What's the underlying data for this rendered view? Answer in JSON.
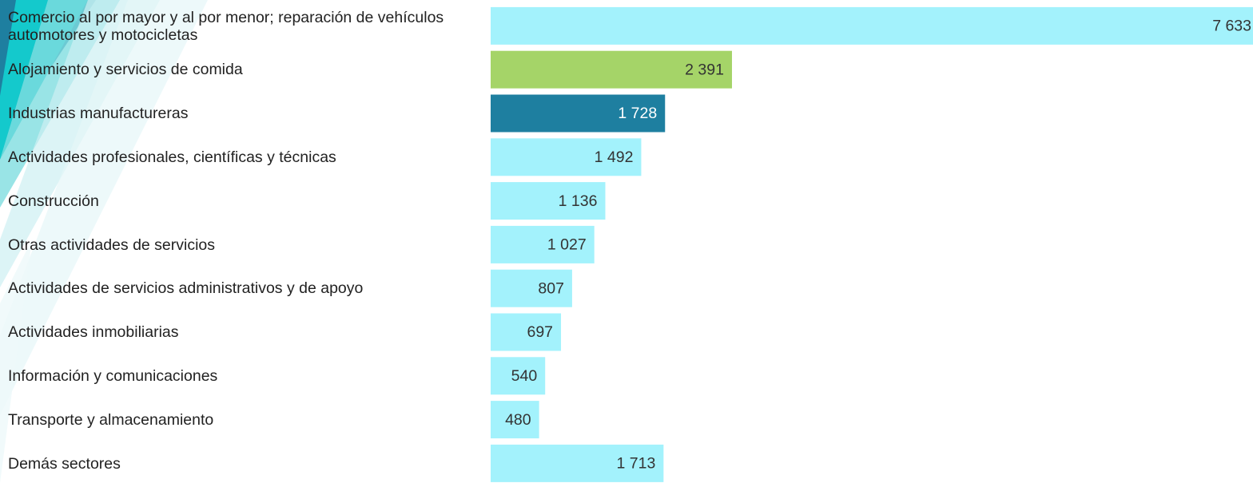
{
  "chart_data": {
    "type": "bar",
    "orientation": "horizontal",
    "categories": [
      "Comercio al por mayor y al por menor; reparación de vehículos automotores y motocicletas",
      "Alojamiento y servicios de comida",
      "Industrias manufactureras",
      "Actividades profesionales, científicas y técnicas",
      "Construcción",
      "Otras actividades de servicios",
      "Actividades de servicios administrativos y de apoyo",
      "Actividades inmobiliarias",
      "Información y comunicaciones",
      "Transporte y almacenamiento",
      "Demás sectores"
    ],
    "values": [
      7633,
      2391,
      1728,
      1492,
      1136,
      1027,
      807,
      697,
      540,
      480,
      1713
    ],
    "value_labels": [
      "7 633",
      "2 391",
      "1 728",
      "1 492",
      "1 136",
      "1 027",
      "807",
      "697",
      "540",
      "480",
      "1 713"
    ],
    "colors": [
      "#a3f2fc",
      "#a5d468",
      "#1e7fa0",
      "#a3f2fc",
      "#a3f2fc",
      "#a3f2fc",
      "#a3f2fc",
      "#a3f2fc",
      "#a3f2fc",
      "#a3f2fc",
      "#a3f2fc"
    ]
  }
}
